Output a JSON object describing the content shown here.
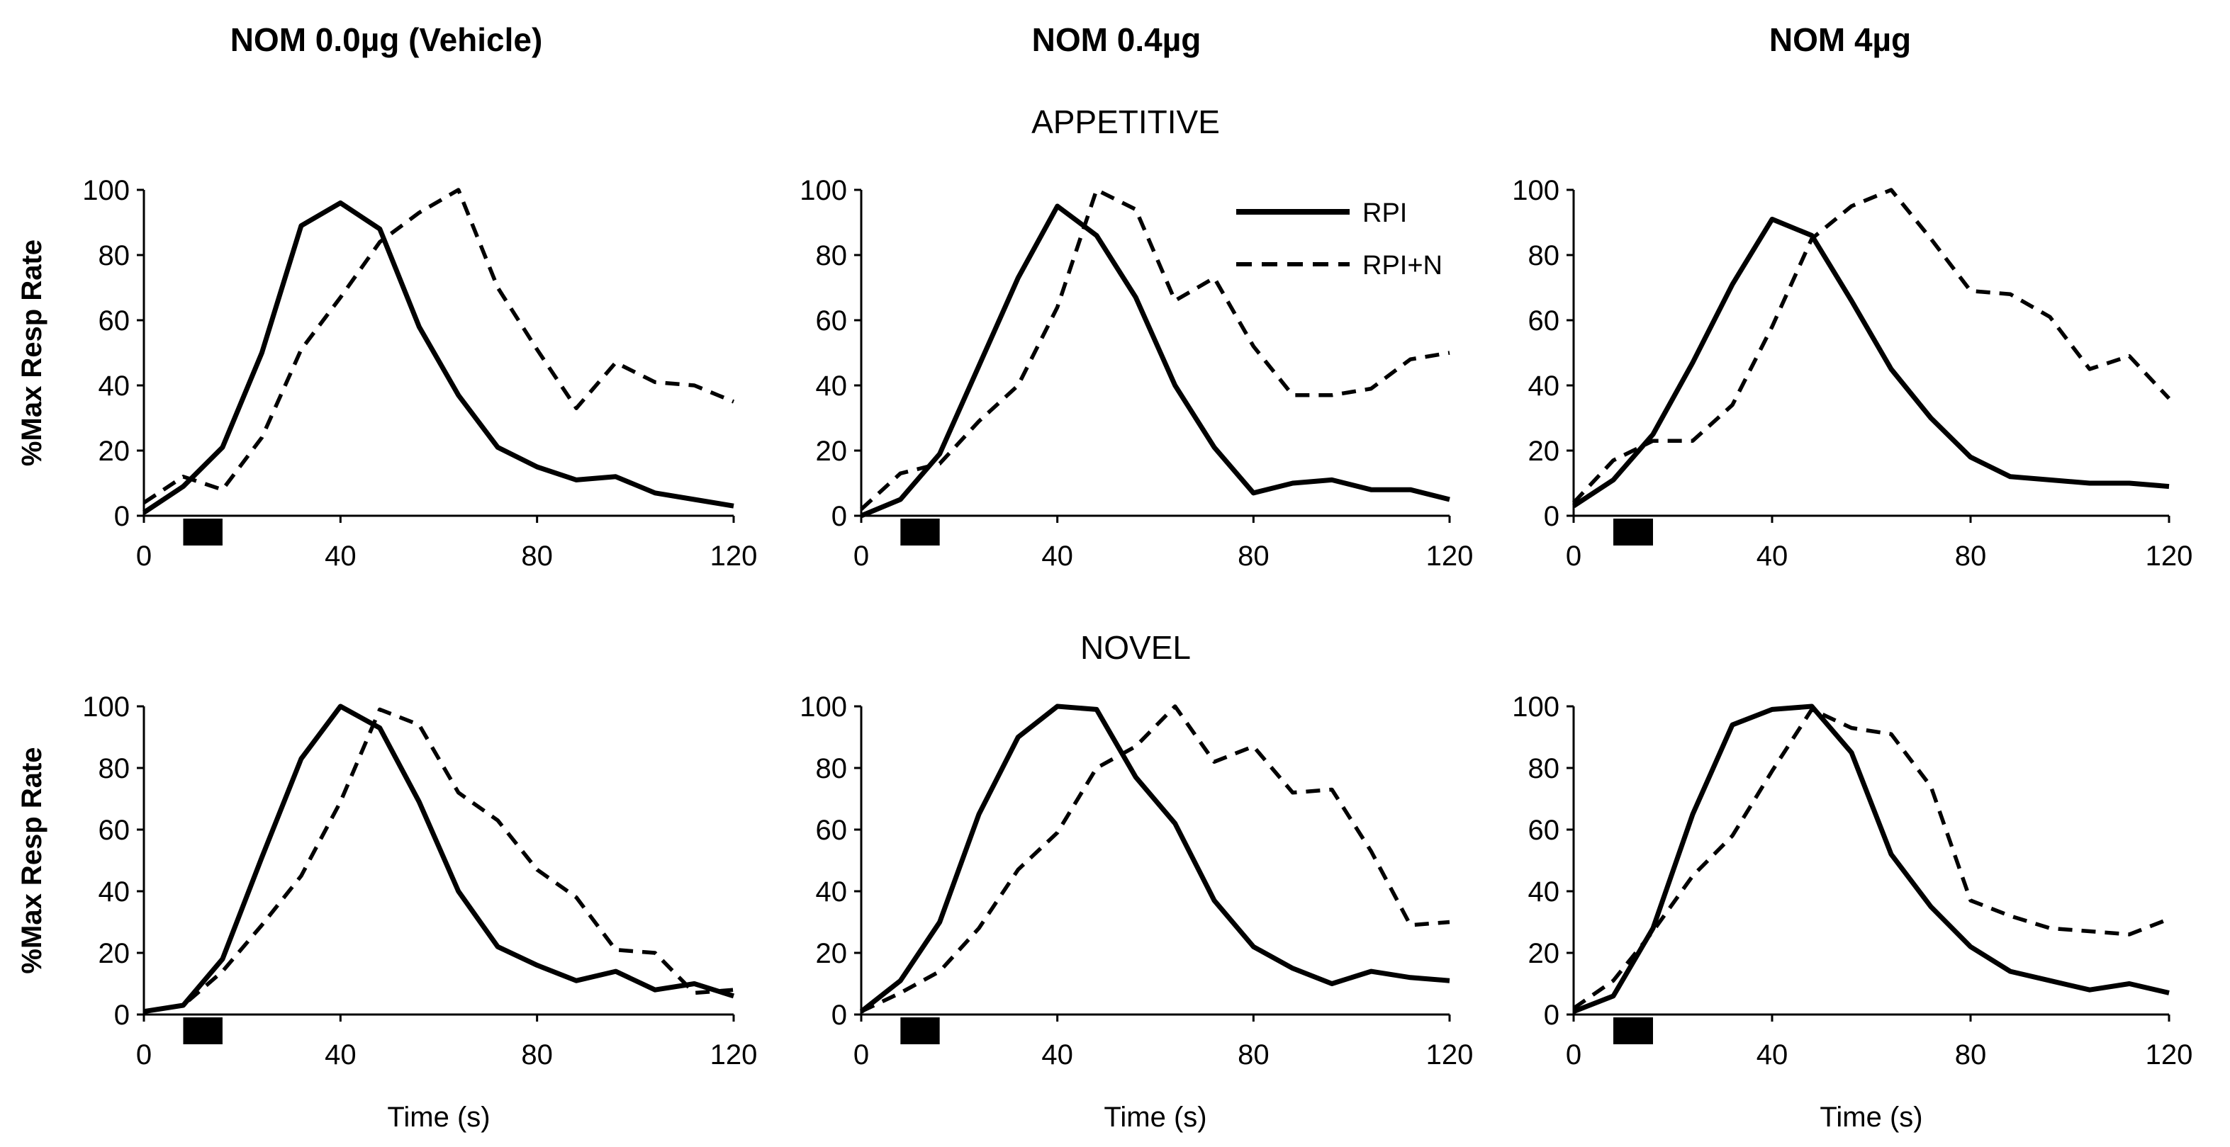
{
  "figure": {
    "col_titles": [
      "NOM 0.0µg (Vehicle)",
      "NOM 0.4µg",
      "NOM 4µg"
    ],
    "row_titles": [
      "APPETITIVE",
      "NOVEL"
    ],
    "legend": [
      "RPI",
      "RPI+N"
    ],
    "ylabel": "%Max Resp Rate",
    "xlabel": "Time (s)",
    "x_ticks": [
      "0",
      "40",
      "80",
      "120"
    ],
    "y_ticks": [
      "0",
      "20",
      "40",
      "60",
      "80",
      "100"
    ],
    "stimulus_marker": {
      "start": 8,
      "end": 16
    }
  },
  "chart_data": [
    {
      "type": "line",
      "row": "APPETITIVE",
      "column": "NOM 0.0µg (Vehicle)",
      "title": "NOM 0.0µg (Vehicle)",
      "xlabel": "",
      "ylabel": "%Max Resp Rate",
      "xlim": [
        0,
        120
      ],
      "ylim": [
        0,
        100
      ],
      "x": [
        0,
        8,
        16,
        24,
        32,
        40,
        48,
        56,
        64,
        72,
        80,
        88,
        96,
        104,
        112,
        120
      ],
      "series": [
        {
          "name": "RPI",
          "style": "solid",
          "values": [
            1,
            9,
            21,
            50,
            89,
            96,
            88,
            58,
            37,
            21,
            15,
            11,
            12,
            7,
            5,
            3
          ]
        },
        {
          "name": "RPI+N",
          "style": "dashed",
          "values": [
            4,
            12,
            8,
            24,
            51,
            67,
            84,
            93,
            100,
            70,
            51,
            33,
            47,
            41,
            40,
            35
          ]
        }
      ]
    },
    {
      "type": "line",
      "row": "APPETITIVE",
      "column": "NOM 0.4µg",
      "title": "NOM 0.4µg",
      "xlabel": "",
      "ylabel": "",
      "xlim": [
        0,
        120
      ],
      "ylim": [
        0,
        100
      ],
      "x": [
        0,
        8,
        16,
        24,
        32,
        40,
        48,
        56,
        64,
        72,
        80,
        88,
        96,
        104,
        112,
        120
      ],
      "series": [
        {
          "name": "RPI",
          "style": "solid",
          "values": [
            0,
            5,
            19,
            46,
            73,
            95,
            86,
            67,
            40,
            21,
            7,
            10,
            11,
            8,
            8,
            5
          ]
        },
        {
          "name": "RPI+N",
          "style": "dashed",
          "values": [
            2,
            13,
            16,
            29,
            40,
            64,
            100,
            94,
            66,
            73,
            52,
            37,
            37,
            39,
            48,
            50
          ]
        }
      ]
    },
    {
      "type": "line",
      "row": "APPETITIVE",
      "column": "NOM 4µg",
      "title": "NOM 4µg",
      "xlabel": "",
      "ylabel": "",
      "xlim": [
        0,
        120
      ],
      "ylim": [
        0,
        100
      ],
      "x": [
        0,
        8,
        16,
        24,
        32,
        40,
        48,
        56,
        64,
        72,
        80,
        88,
        96,
        104,
        112,
        120
      ],
      "series": [
        {
          "name": "RPI",
          "style": "solid",
          "values": [
            3,
            11,
            25,
            47,
            71,
            91,
            86,
            66,
            45,
            30,
            18,
            12,
            11,
            10,
            10,
            9
          ]
        },
        {
          "name": "RPI+N",
          "style": "dashed",
          "values": [
            4,
            17,
            23,
            23,
            34,
            58,
            85,
            95,
            100,
            85,
            69,
            68,
            61,
            45,
            49,
            36
          ]
        }
      ]
    },
    {
      "type": "line",
      "row": "NOVEL",
      "column": "NOM 0.0µg (Vehicle)",
      "title": "",
      "xlabel": "Time (s)",
      "ylabel": "%Max Resp Rate",
      "xlim": [
        0,
        120
      ],
      "ylim": [
        0,
        100
      ],
      "x": [
        0,
        8,
        16,
        24,
        32,
        40,
        48,
        56,
        64,
        72,
        80,
        88,
        96,
        104,
        112,
        120
      ],
      "series": [
        {
          "name": "RPI",
          "style": "solid",
          "values": [
            1,
            3,
            18,
            51,
            83,
            100,
            93,
            69,
            40,
            22,
            16,
            11,
            14,
            8,
            10,
            6
          ]
        },
        {
          "name": "RPI+N",
          "style": "dashed",
          "values": [
            1,
            3,
            14,
            29,
            45,
            69,
            99,
            94,
            72,
            63,
            47,
            38,
            21,
            20,
            7,
            8
          ]
        }
      ]
    },
    {
      "type": "line",
      "row": "NOVEL",
      "column": "NOM 0.4µg",
      "title": "",
      "xlabel": "Time (s)",
      "ylabel": "",
      "xlim": [
        0,
        120
      ],
      "ylim": [
        0,
        100
      ],
      "x": [
        0,
        8,
        16,
        24,
        32,
        40,
        48,
        56,
        64,
        72,
        80,
        88,
        96,
        104,
        112,
        120
      ],
      "series": [
        {
          "name": "RPI",
          "style": "solid",
          "values": [
            1,
            11,
            30,
            65,
            90,
            100,
            99,
            77,
            62,
            37,
            22,
            15,
            10,
            14,
            12,
            11
          ]
        },
        {
          "name": "RPI+N",
          "style": "dashed",
          "values": [
            1,
            7,
            14,
            28,
            47,
            59,
            80,
            87,
            100,
            82,
            87,
            72,
            73,
            53,
            29,
            30
          ]
        }
      ]
    },
    {
      "type": "line",
      "row": "NOVEL",
      "column": "NOM 4µg",
      "title": "",
      "xlabel": "Time (s)",
      "ylabel": "",
      "xlim": [
        0,
        120
      ],
      "ylim": [
        0,
        100
      ],
      "x": [
        0,
        8,
        16,
        24,
        32,
        40,
        48,
        56,
        64,
        72,
        80,
        88,
        96,
        104,
        112,
        120
      ],
      "series": [
        {
          "name": "RPI",
          "style": "solid",
          "values": [
            1,
            6,
            28,
            65,
            94,
            99,
            100,
            85,
            52,
            35,
            22,
            14,
            11,
            8,
            10,
            7
          ]
        },
        {
          "name": "RPI+N",
          "style": "dashed",
          "values": [
            2,
            11,
            27,
            45,
            58,
            79,
            99,
            93,
            91,
            74,
            37,
            32,
            28,
            27,
            26,
            31
          ]
        }
      ]
    }
  ]
}
